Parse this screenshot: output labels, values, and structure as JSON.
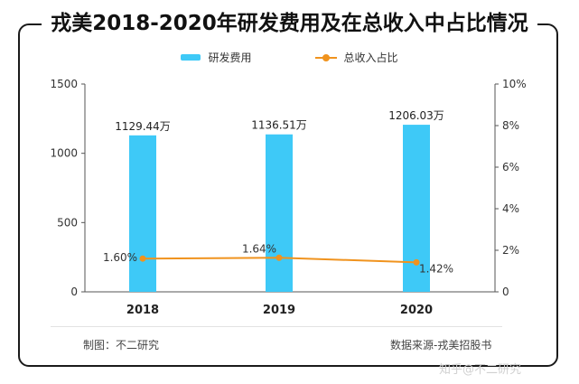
{
  "title": "戎美2018-2020年研发费用及在总收入中占比情况",
  "legend": {
    "bar_label": "研发费用",
    "line_label": "总收入占比"
  },
  "footer": {
    "left": "制图：不二研究",
    "right": "数据来源-戎美招股书"
  },
  "watermark": "知乎@不二研究",
  "colors": {
    "bar": "#3EC9F7",
    "line": "#F0931E",
    "axis": "#555555",
    "frame": "#1a1a1a"
  },
  "chart_data": {
    "type": "bar+line",
    "title": "戎美2018-2020年研发费用及在总收入中占比情况",
    "categories": [
      "2018",
      "2019",
      "2020"
    ],
    "series": [
      {
        "name": "研发费用",
        "type": "bar",
        "axis": "left",
        "values": [
          1129.44,
          1136.51,
          1206.03
        ],
        "labels": [
          "1129.44万",
          "1136.51万",
          "1206.03万"
        ]
      },
      {
        "name": "总收入占比",
        "type": "line",
        "axis": "right",
        "values": [
          1.6,
          1.64,
          1.42
        ],
        "labels": [
          "1.60%",
          "1.64%",
          "1.42%"
        ]
      }
    ],
    "y_left": {
      "min": 0,
      "max": 1500,
      "ticks": [
        0,
        500,
        1000,
        1500
      ],
      "tick_labels": [
        "0",
        "500",
        "1000",
        "1500"
      ]
    },
    "y_right": {
      "min": 0,
      "max": 10,
      "ticks": [
        0,
        2,
        4,
        6,
        8,
        10
      ],
      "tick_labels": [
        "0",
        "2%",
        "4%",
        "6%",
        "8%",
        "10%"
      ]
    },
    "grid": false,
    "legend_position": "top-center"
  }
}
